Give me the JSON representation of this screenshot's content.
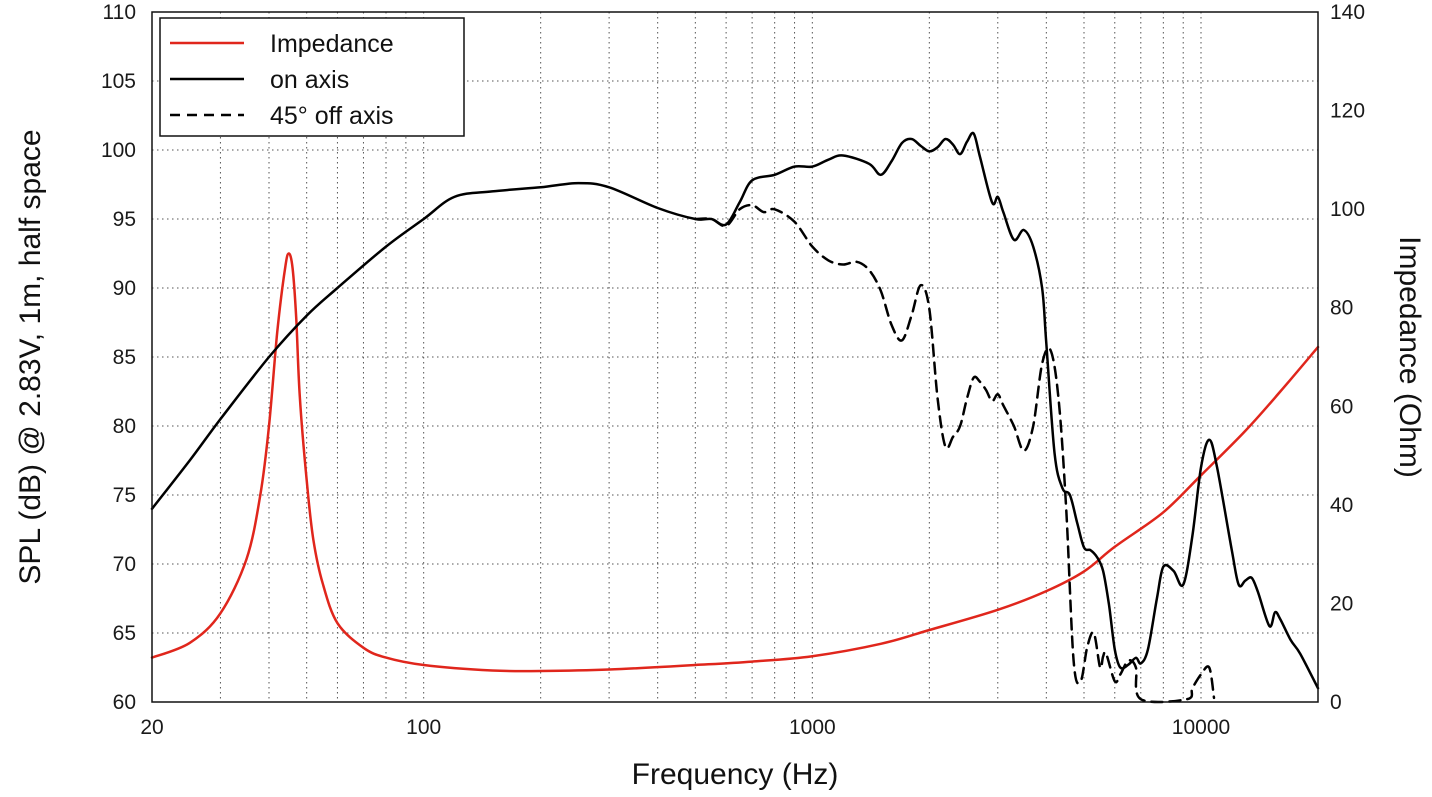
{
  "chart_data": {
    "type": "line",
    "x_scale": "log",
    "xlabel": "Frequency (Hz)",
    "ylabel_left": "SPL (dB) @ 2.83V, 1m, half space",
    "ylabel_right": "Impedance (Ohm)",
    "xlim": [
      20,
      20000
    ],
    "ylim_left": [
      60,
      110
    ],
    "ylim_right": [
      0,
      140
    ],
    "x_ticks": [
      20,
      100,
      1000,
      10000
    ],
    "x_tick_labels": [
      "20",
      "100",
      "1000",
      "10000"
    ],
    "x_minor_ticks": [
      30,
      40,
      50,
      60,
      70,
      80,
      90,
      200,
      300,
      400,
      500,
      600,
      700,
      800,
      900,
      2000,
      3000,
      4000,
      5000,
      6000,
      7000,
      8000,
      9000
    ],
    "y_left_ticks": [
      60,
      65,
      70,
      75,
      80,
      85,
      90,
      95,
      100,
      105,
      110
    ],
    "y_left_tick_labels": [
      "60",
      "65",
      "70",
      "75",
      "80",
      "85",
      "90",
      "95",
      "100",
      "105",
      "110"
    ],
    "y_right_ticks": [
      0,
      20,
      40,
      60,
      80,
      100,
      120,
      140
    ],
    "y_right_tick_labels": [
      "0",
      "20",
      "40",
      "60",
      "80",
      "100",
      "120",
      "140"
    ],
    "grid": true,
    "legend_position": "top-left",
    "series": [
      {
        "name": "Impedance",
        "axis": "right",
        "color": "#e0261c",
        "style": "solid",
        "x": [
          20,
          25,
          30,
          35,
          38,
          40,
          42,
          44,
          45,
          46,
          47,
          48,
          50,
          52,
          55,
          60,
          70,
          80,
          100,
          150,
          200,
          300,
          500,
          700,
          1000,
          1500,
          2000,
          3000,
          4000,
          5000,
          6000,
          8000,
          10000,
          13000,
          16000,
          20000
        ],
        "y": [
          9,
          12,
          18,
          29,
          42,
          56,
          75,
          88,
          91,
          88,
          78,
          62,
          45,
          33,
          24,
          16,
          11,
          9,
          7.5,
          6.4,
          6.3,
          6.6,
          7.5,
          8.2,
          9.3,
          11.8,
          14.6,
          18.7,
          22.5,
          26.5,
          31.5,
          38.5,
          46,
          55,
          63,
          72
        ]
      },
      {
        "name": "on axis",
        "axis": "left",
        "color": "#000000",
        "style": "solid",
        "x": [
          20,
          25,
          30,
          40,
          50,
          60,
          80,
          100,
          120,
          150,
          200,
          250,
          300,
          400,
          500,
          550,
          600,
          650,
          700,
          800,
          900,
          1000,
          1100,
          1200,
          1400,
          1500,
          1600,
          1700,
          1800,
          1900,
          2000,
          2100,
          2200,
          2300,
          2400,
          2500,
          2600,
          2700,
          2900,
          3000,
          3100,
          3300,
          3500,
          3700,
          3900,
          4000,
          4200,
          4400,
          4600,
          4800,
          5000,
          5200,
          5400,
          5600,
          5800,
          6000,
          6200,
          6500,
          6800,
          7000,
          7300,
          7700,
          8000,
          8500,
          9000,
          9500,
          10000,
          10500,
          11000,
          12000,
          12500,
          13000,
          13500,
          14000,
          15000,
          15500,
          16000,
          17000,
          18000,
          20000
        ],
        "y": [
          74,
          77.5,
          80.5,
          85,
          88,
          90,
          93,
          95,
          96.6,
          97,
          97.3,
          97.6,
          97.3,
          95.8,
          95,
          95,
          94.6,
          96.2,
          97.8,
          98.2,
          98.8,
          98.8,
          99.3,
          99.6,
          99,
          98.2,
          99.2,
          100.5,
          100.8,
          100.3,
          99.9,
          100.2,
          100.8,
          100.4,
          99.7,
          100.6,
          101.2,
          99.5,
          96.2,
          96.6,
          95.5,
          93.5,
          94.2,
          93,
          90,
          86,
          78,
          75.5,
          75,
          73,
          71.2,
          71,
          70.5,
          69.5,
          67,
          63.8,
          62.5,
          62.7,
          63.2,
          62.8,
          63.8,
          67.5,
          69.8,
          69.5,
          68.5,
          72,
          77,
          79,
          77,
          71,
          68.5,
          68.8,
          69,
          68,
          65.5,
          66.5,
          66,
          64.5,
          63.5,
          61
        ]
      },
      {
        "name": "45° off axis",
        "axis": "left",
        "color": "#000000",
        "style": "dashed",
        "x": [
          500,
          550,
          600,
          650,
          700,
          750,
          800,
          900,
          1000,
          1100,
          1200,
          1300,
          1400,
          1500,
          1600,
          1700,
          1800,
          1900,
          2000,
          2100,
          2200,
          2300,
          2400,
          2500,
          2600,
          2700,
          2800,
          2900,
          3000,
          3100,
          3300,
          3500,
          3700,
          3900,
          4100,
          4300,
          4500,
          4700,
          4900,
          5100,
          5300,
          5500,
          5600,
          5700,
          6000,
          6200,
          6500,
          6800,
          7000,
          9200,
          9500,
          10000,
          10500,
          10800
        ],
        "y": [
          95,
          95,
          94.5,
          95.7,
          96,
          95.5,
          95.7,
          94.8,
          93,
          92,
          91.7,
          91.9,
          91.3,
          89.8,
          87.3,
          86.2,
          88,
          90.2,
          88.5,
          82,
          78.5,
          79.2,
          80,
          82,
          83.5,
          83.2,
          82.6,
          81.8,
          82.3,
          81.5,
          80,
          78.2,
          80,
          84.5,
          85.5,
          82,
          74,
          63,
          61.5,
          64,
          65,
          62.5,
          63.3,
          63.5,
          61.5,
          62,
          63,
          62.5,
          60.2,
          60.2,
          61,
          62,
          62.5,
          60.3
        ]
      }
    ]
  }
}
